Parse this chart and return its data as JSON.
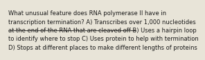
{
  "lines": [
    {
      "text": "What unusual feature does RNA polymerase II have in",
      "strikethrough": false
    },
    {
      "text": "transcription termination? A) Transcribes over 1,000 nucleotides",
      "strikethrough": false
    },
    {
      "text": "at the end of the RNA that are cleaved off B) Uses a hairpin loop",
      "strikethrough": true
    },
    {
      "text": "to identify where to stop C) Uses protein to help with termination",
      "strikethrough": false
    },
    {
      "text": "D) Stops at different places to make different lengths of proteins",
      "strikethrough": false
    }
  ],
  "bg_color": "#e8e4d8",
  "text_color": "#1a1a1a",
  "font_size": 6.0
}
